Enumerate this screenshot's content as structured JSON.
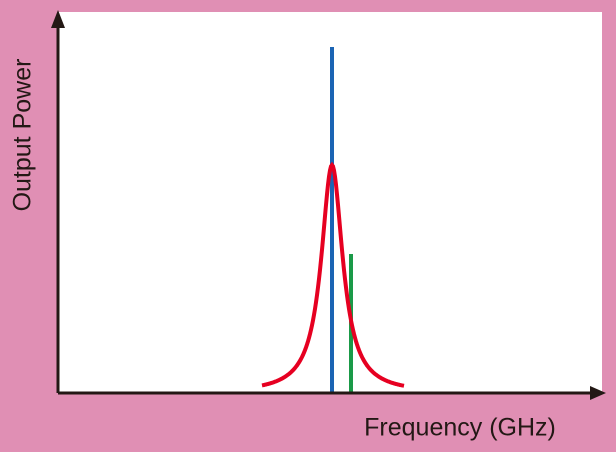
{
  "x_axis_label": "Frequency (GHz)",
  "y_axis_label": "Output Power"
}
